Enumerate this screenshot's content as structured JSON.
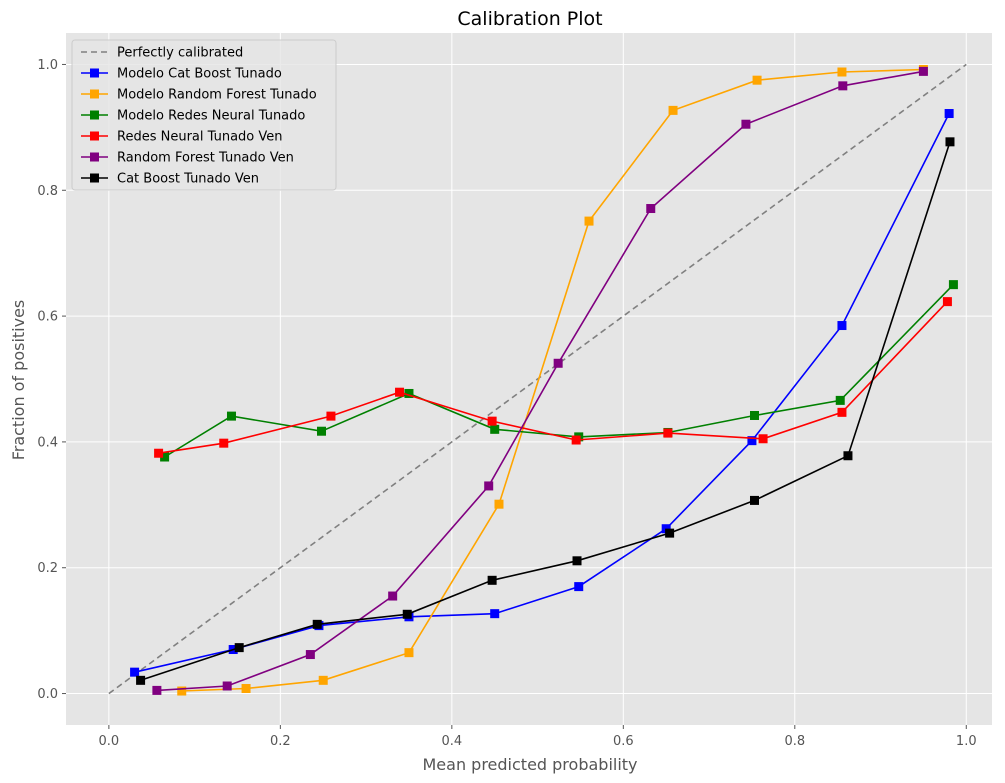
{
  "chart_data": {
    "type": "line",
    "title": "Calibration Plot",
    "xlabel": "Mean predicted probability",
    "ylabel": "Fraction of positives",
    "xlim": [
      -0.05,
      1.03
    ],
    "ylim": [
      -0.05,
      1.05
    ],
    "xticks": [
      "0.0",
      "0.2",
      "0.4",
      "0.6",
      "0.8",
      "1.0"
    ],
    "yticks": [
      "0.0",
      "0.2",
      "0.4",
      "0.6",
      "0.8",
      "1.0"
    ],
    "grid": true,
    "legend_position": "top-left",
    "reference": {
      "name": "Perfectly calibrated",
      "style": "dashed",
      "color": "#808080",
      "x": [
        0.0,
        1.0
      ],
      "y": [
        0.0,
        1.0
      ]
    },
    "series": [
      {
        "name": "Modelo Cat Boost Tunado",
        "color": "#0000ff",
        "marker": "square",
        "x": [
          0.03,
          0.145,
          0.245,
          0.35,
          0.45,
          0.548,
          0.65,
          0.75,
          0.855,
          0.98
        ],
        "y": [
          0.034,
          0.07,
          0.108,
          0.122,
          0.127,
          0.17,
          0.262,
          0.402,
          0.585,
          0.922
        ]
      },
      {
        "name": "Modelo Random Forest Tunado",
        "color": "#ffa500",
        "marker": "square",
        "x": [
          0.085,
          0.16,
          0.25,
          0.35,
          0.455,
          0.56,
          0.658,
          0.756,
          0.855,
          0.95
        ],
        "y": [
          0.004,
          0.008,
          0.021,
          0.065,
          0.301,
          0.751,
          0.927,
          0.975,
          0.988,
          0.992
        ]
      },
      {
        "name": "Modelo Redes Neural Tunado",
        "color": "#008000",
        "marker": "square",
        "x": [
          0.065,
          0.143,
          0.248,
          0.35,
          0.45,
          0.548,
          0.652,
          0.753,
          0.853,
          0.985
        ],
        "y": [
          0.376,
          0.441,
          0.417,
          0.477,
          0.42,
          0.408,
          0.415,
          0.442,
          0.466,
          0.65
        ]
      },
      {
        "name": "Redes Neural Tunado Ven",
        "color": "#ff0000",
        "marker": "square",
        "x": [
          0.058,
          0.134,
          0.259,
          0.339,
          0.447,
          0.545,
          0.652,
          0.763,
          0.855,
          0.978
        ],
        "y": [
          0.382,
          0.398,
          0.441,
          0.479,
          0.433,
          0.403,
          0.414,
          0.405,
          0.447,
          0.623
        ]
      },
      {
        "name": "Random Forest Tunado Ven",
        "color": "#800080",
        "marker": "square",
        "x": [
          0.056,
          0.138,
          0.235,
          0.331,
          0.443,
          0.524,
          0.632,
          0.743,
          0.856,
          0.95
        ],
        "y": [
          0.005,
          0.012,
          0.062,
          0.155,
          0.33,
          0.525,
          0.771,
          0.905,
          0.966,
          0.989
        ]
      },
      {
        "name": "Cat Boost Tunado Ven",
        "color": "#000000",
        "marker": "square",
        "x": [
          0.037,
          0.152,
          0.243,
          0.348,
          0.447,
          0.546,
          0.654,
          0.753,
          0.862,
          0.981
        ],
        "y": [
          0.021,
          0.073,
          0.11,
          0.126,
          0.18,
          0.211,
          0.255,
          0.307,
          0.378,
          0.877
        ]
      }
    ]
  }
}
